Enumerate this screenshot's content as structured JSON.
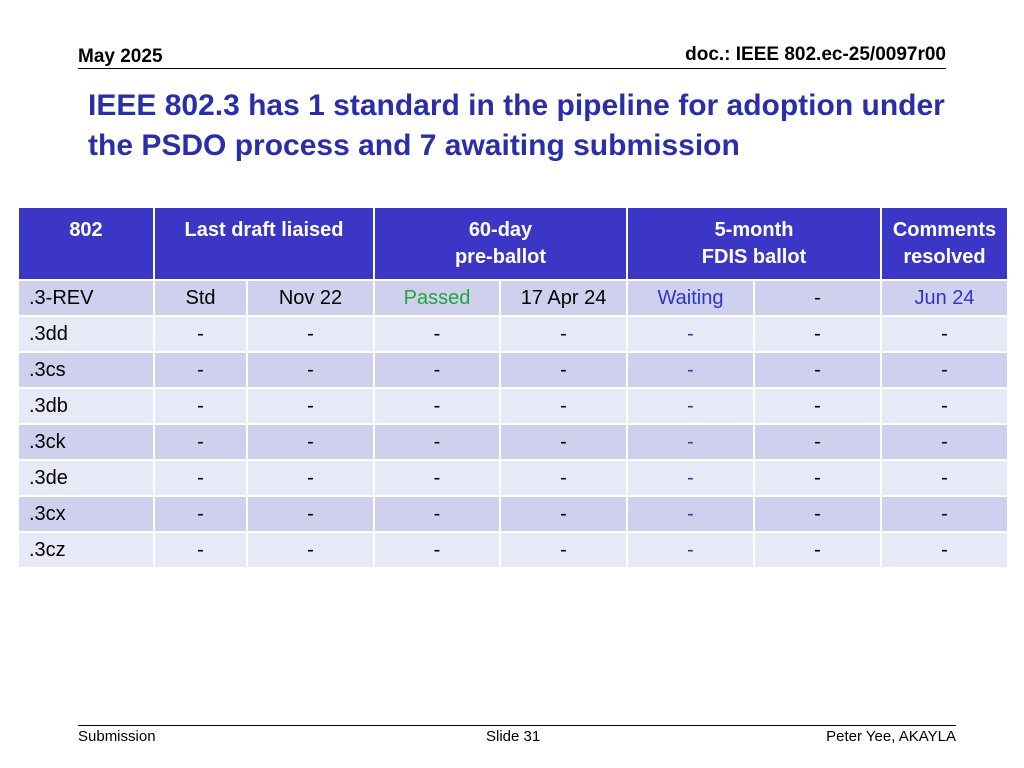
{
  "header": {
    "date": "May 2025",
    "doc_id": "doc.: IEEE 802.ec-25/0097r00"
  },
  "title": "IEEE 802.3 has 1 standard in the pipeline for adoption under the PSDO process and 7 awaiting submission",
  "table": {
    "headers": {
      "col_802": "802",
      "last_draft": "Last draft liaised",
      "preballot_line1": "60-day",
      "preballot_line2": "pre-ballot",
      "fdis_line1": "5-month",
      "fdis_line2": "FDIS ballot",
      "comments_line1": "Comments",
      "comments_line2": "resolved"
    },
    "rows": [
      {
        "name": ".3-REV",
        "draft": "Std",
        "draft_date": "Nov 22",
        "pre_status": "Passed",
        "pre_date": "17 Apr 24",
        "fdis_status": "Waiting",
        "fdis_date": "-",
        "comments": "Jun 24"
      },
      {
        "name": ".3dd",
        "draft": "-",
        "draft_date": "-",
        "pre_status": "-",
        "pre_date": "-",
        "fdis_status": "-",
        "fdis_date": "-",
        "comments": "-"
      },
      {
        "name": ".3cs",
        "draft": "-",
        "draft_date": "-",
        "pre_status": "-",
        "pre_date": "-",
        "fdis_status": "-",
        "fdis_date": "-",
        "comments": "-"
      },
      {
        "name": ".3db",
        "draft": "-",
        "draft_date": "-",
        "pre_status": "-",
        "pre_date": "-",
        "fdis_status": "-",
        "fdis_date": "-",
        "comments": "-"
      },
      {
        "name": ".3ck",
        "draft": "-",
        "draft_date": "-",
        "pre_status": "-",
        "pre_date": "-",
        "fdis_status": "-",
        "fdis_date": "-",
        "comments": "-"
      },
      {
        "name": ".3de",
        "draft": "-",
        "draft_date": "-",
        "pre_status": "-",
        "pre_date": "-",
        "fdis_status": "-",
        "fdis_date": "-",
        "comments": "-"
      },
      {
        "name": ".3cx",
        "draft": "-",
        "draft_date": "-",
        "pre_status": "-",
        "pre_date": "-",
        "fdis_status": "-",
        "fdis_date": "-",
        "comments": "-"
      },
      {
        "name": ".3cz",
        "draft": "-",
        "draft_date": "-",
        "pre_status": "-",
        "pre_date": "-",
        "fdis_status": "-",
        "fdis_date": "-",
        "comments": "-"
      }
    ]
  },
  "footer": {
    "left": "Submission",
    "center": "Slide 31",
    "right": "Peter Yee, AKAYLA"
  },
  "colors": {
    "title": "#2a2fa8",
    "header_bg": "#3b36c6",
    "row_odd": "#cfd0ee",
    "row_even": "#e8e9f6",
    "passed": "#1fa83a",
    "status_blue": "#2d36c8"
  }
}
